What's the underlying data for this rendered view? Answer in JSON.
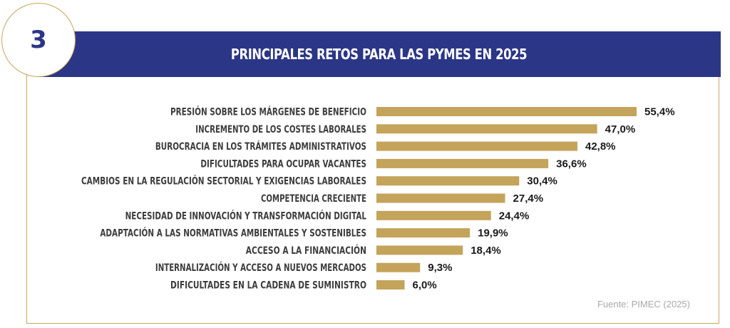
{
  "header": {
    "number": "3",
    "title": "PRINCIPALES RETOS PARA LAS PYMES EN 2025"
  },
  "source": "Fuente: PIMEC (2025)",
  "colors": {
    "bar": "#c4a35a",
    "header": "#2b3686",
    "border": "#c9a55c"
  },
  "chart_data": {
    "type": "bar",
    "orientation": "horizontal",
    "title": "PRINCIPALES RETOS PARA LAS PYMES EN 2025",
    "categories": [
      "PRESIÓN SOBRE LOS MÁRGENES DE BENEFICIO",
      "INCREMENTO DE LOS COSTES LABORALES",
      "BUROCRACIA EN LOS TRÁMITES ADMINISTRATIVOS",
      "DIFICULTADES PARA OCUPAR VACANTES",
      "CAMBIOS EN LA REGULACIÓN SECTORIAL Y EXIGENCIAS LABORALES",
      "COMPETENCIA CRECIENTE",
      "NECESIDAD DE INNOVACIÓN Y TRANSFORMACIÓN DIGITAL",
      "ADAPTACIÓN A LAS NORMATIVAS AMBIENTALES Y SOSTENIBLES",
      "ACCESO A LA FINANCIACIÓN",
      "INTERNALIZACIÓN Y ACCESO A NUEVOS MERCADOS",
      "DIFICULTADES EN LA CADENA DE SUMINISTRO"
    ],
    "values": [
      55.4,
      47.0,
      42.8,
      36.6,
      30.4,
      27.4,
      24.4,
      19.9,
      18.4,
      9.3,
      6.0
    ],
    "value_labels": [
      "55,4%",
      "47,0%",
      "42,8%",
      "36,6%",
      "30,4%",
      "27,4%",
      "24,4%",
      "19,9%",
      "18,4%",
      "9,3%",
      "6,0%"
    ],
    "xlim": [
      0,
      55.4
    ],
    "grid": false,
    "legend": "none"
  }
}
